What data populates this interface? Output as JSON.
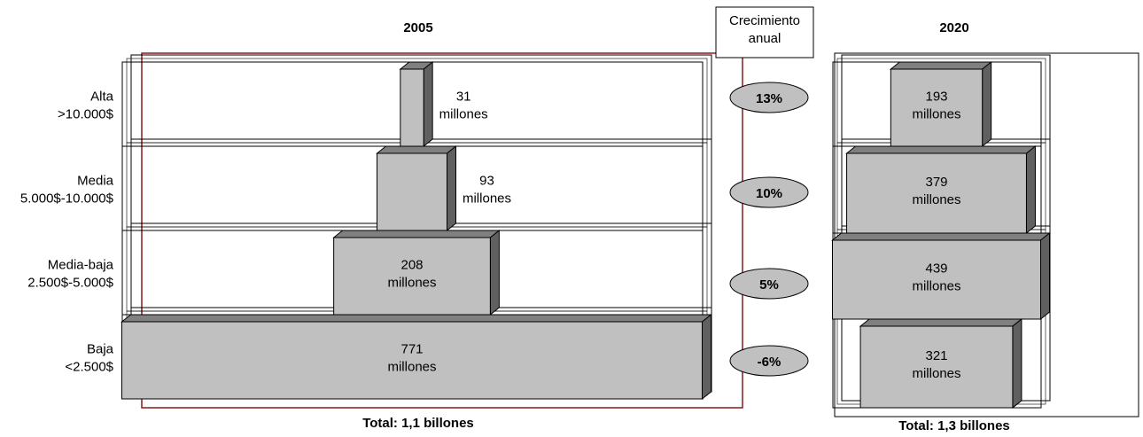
{
  "chart_data": [
    {
      "type": "bar",
      "title": "2005",
      "annotation": "Total: 1,1 billones",
      "categories": [
        "Alta >10.000$",
        "Media 5.000$-10.000$",
        "Media-baja 2.500$-5.000$",
        "Baja <2.500$"
      ],
      "values": [
        31,
        93,
        208,
        771
      ],
      "value_labels": [
        "31 millones",
        "93 millones",
        "208 millones",
        "771 millones"
      ],
      "color": "#c0c0c0"
    },
    {
      "type": "bar",
      "title": "2020",
      "annotation": "Total: 1,3 billones",
      "values": [
        193,
        379,
        439,
        321
      ],
      "value_labels": [
        "193 millones",
        "379 millones",
        "439 millones",
        "321 millones"
      ],
      "color": "#c0c0c0"
    }
  ],
  "growth": {
    "title": "Crecimiento anual",
    "values": [
      13,
      10,
      5,
      -6
    ],
    "value_labels": [
      "13%",
      "10%",
      "5%",
      "-6%"
    ]
  }
}
